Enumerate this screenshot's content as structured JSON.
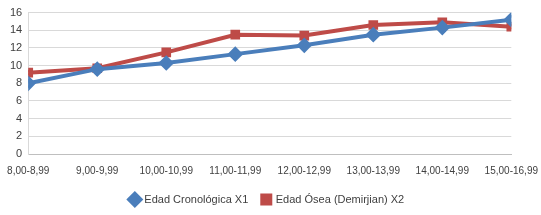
{
  "chart_data": {
    "type": "line",
    "categories": [
      "8,00-8,99",
      "9,00-9,99",
      "10,00-10,99",
      "11,00-11,99",
      "12,00-12,99",
      "13,00-13,99",
      "14,00-14,99",
      "15,00-16,99"
    ],
    "series": [
      {
        "name": "Edad Cronológica X1",
        "color": "#4a7ebb",
        "marker": "diamond",
        "line_style": "solid",
        "values": [
          8.0,
          9.6,
          10.3,
          11.3,
          12.3,
          13.5,
          14.3,
          15.2
        ]
      },
      {
        "name": "Edad Ósea (Demirjian) X2",
        "color": "#be4b48",
        "marker": "square",
        "line_style": "solid",
        "values": [
          9.2,
          9.7,
          11.5,
          13.5,
          13.4,
          14.6,
          14.9,
          14.4
        ]
      }
    ],
    "ylim": [
      0,
      16
    ],
    "yticks": [
      0,
      2,
      4,
      6,
      8,
      10,
      12,
      14,
      16
    ],
    "grid": true,
    "legend": "bottom"
  }
}
